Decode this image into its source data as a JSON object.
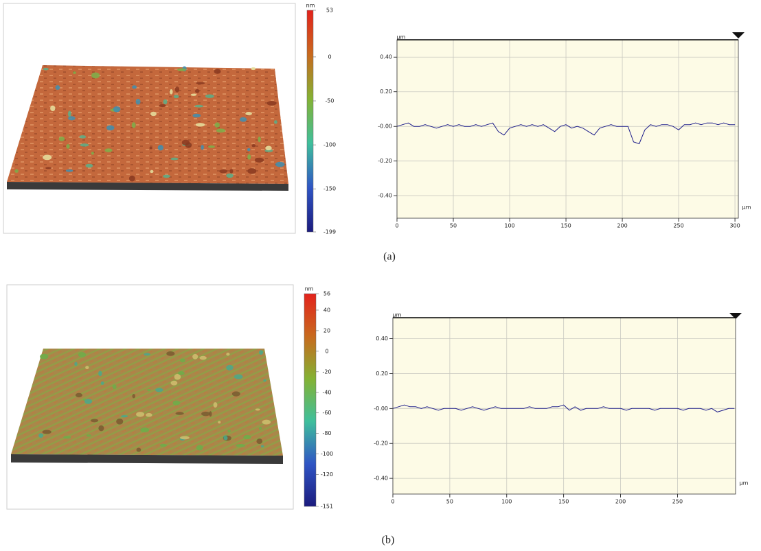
{
  "chart_data": [
    {
      "type": "line",
      "y_unit": "µm",
      "x_unit": "µm",
      "x": [
        0,
        5,
        10,
        15,
        20,
        25,
        30,
        35,
        40,
        45,
        50,
        55,
        60,
        65,
        70,
        75,
        80,
        85,
        90,
        95,
        100,
        105,
        110,
        115,
        120,
        125,
        130,
        135,
        140,
        145,
        150,
        155,
        160,
        165,
        170,
        175,
        180,
        185,
        190,
        195,
        200,
        205,
        210,
        215,
        220,
        225,
        230,
        235,
        240,
        245,
        250,
        255,
        260,
        265,
        270,
        275,
        280,
        285,
        290,
        295,
        300
      ],
      "series": [
        {
          "color": "#1c1c8a",
          "values": [
            0.0,
            0.01,
            0.02,
            0.0,
            0.0,
            0.01,
            0.0,
            -0.01,
            0.0,
            0.01,
            0.0,
            0.01,
            0.0,
            0.0,
            0.01,
            0.0,
            0.01,
            0.02,
            -0.03,
            -0.05,
            -0.01,
            0.0,
            0.01,
            0.0,
            0.01,
            0.0,
            0.01,
            -0.01,
            -0.03,
            0.0,
            0.01,
            -0.01,
            0.0,
            -0.01,
            -0.03,
            -0.05,
            -0.01,
            0.0,
            0.01,
            0.0,
            0.0,
            0.0,
            -0.09,
            -0.1,
            -0.02,
            0.01,
            0.0,
            0.01,
            0.01,
            0.0,
            -0.02,
            0.01,
            0.01,
            0.02,
            0.01,
            0.02,
            0.02,
            0.01,
            0.02,
            0.01,
            0.01
          ]
        }
      ],
      "xlim": [
        0,
        303
      ],
      "ylim": [
        -0.53,
        0.5
      ],
      "xticks": [
        0,
        50,
        100,
        150,
        200,
        250,
        300
      ],
      "yticks": [
        {
          "value": 0.4,
          "label": "0.40"
        },
        {
          "value": 0.2,
          "label": "0.20"
        },
        {
          "value": 0,
          "label": "-0.00"
        },
        {
          "value": -0.2,
          "label": "-0.20"
        },
        {
          "value": -0.4,
          "label": "-0.40"
        }
      ],
      "grid": true
    },
    {
      "type": "line",
      "y_unit": "µm",
      "x_unit": "µm",
      "x": [
        0,
        5,
        10,
        15,
        20,
        25,
        30,
        35,
        40,
        45,
        50,
        55,
        60,
        65,
        70,
        75,
        80,
        85,
        90,
        95,
        100,
        105,
        110,
        115,
        120,
        125,
        130,
        135,
        140,
        145,
        150,
        155,
        160,
        165,
        170,
        175,
        180,
        185,
        190,
        195,
        200,
        205,
        210,
        215,
        220,
        225,
        230,
        235,
        240,
        245,
        250,
        255,
        260,
        265,
        270,
        275,
        280,
        285,
        290,
        295,
        300
      ],
      "series": [
        {
          "color": "#1c1c8a",
          "values": [
            0.0,
            0.01,
            0.02,
            0.01,
            0.01,
            0.0,
            0.01,
            0.0,
            -0.01,
            0.0,
            0.0,
            0.0,
            -0.01,
            0.0,
            0.01,
            0.0,
            -0.01,
            0.0,
            0.01,
            0.0,
            0.0,
            0.0,
            0.0,
            0.0,
            0.01,
            0.0,
            0.0,
            0.0,
            0.01,
            0.01,
            0.02,
            -0.01,
            0.01,
            -0.01,
            0.0,
            0.0,
            0.0,
            0.01,
            0.0,
            0.0,
            0.0,
            -0.01,
            0.0,
            0.0,
            0.0,
            0.0,
            -0.01,
            0.0,
            0.0,
            0.0,
            0.0,
            -0.01,
            0.0,
            0.0,
            0.0,
            -0.01,
            0.0,
            -0.02,
            -0.01,
            0.0,
            0.0
          ]
        }
      ],
      "xlim": [
        0,
        301
      ],
      "ylim": [
        -0.49,
        0.52
      ],
      "xticks": [
        0,
        50,
        100,
        150,
        200,
        250
      ],
      "yticks": [
        {
          "value": 0.4,
          "label": "0.40"
        },
        {
          "value": 0.2,
          "label": "0.20"
        },
        {
          "value": 0,
          "label": "-0.00"
        },
        {
          "value": -0.2,
          "label": "-0.20"
        },
        {
          "value": -0.4,
          "label": "-0.40"
        }
      ],
      "grid": true
    }
  ],
  "panels": [
    {
      "label": "(a)",
      "colorbar": {
        "unit": "nm",
        "ticks": [
          53,
          0,
          -50,
          -100,
          -150,
          -199
        ],
        "colormap": [
          "#e3221c",
          "#c86a1e",
          "#84b234",
          "#3fbf9c",
          "#2f55c4",
          "#1b1b7e"
        ]
      }
    },
    {
      "label": "(b)",
      "colorbar": {
        "unit": "nm",
        "ticks": [
          56,
          40,
          20,
          0,
          -20,
          -40,
          -60,
          -80,
          -100,
          -120,
          -151
        ],
        "colormap": [
          "#e3221c",
          "#c86a1e",
          "#84b234",
          "#3fbf9c",
          "#2f55c4",
          "#1b1b7e"
        ]
      }
    }
  ]
}
